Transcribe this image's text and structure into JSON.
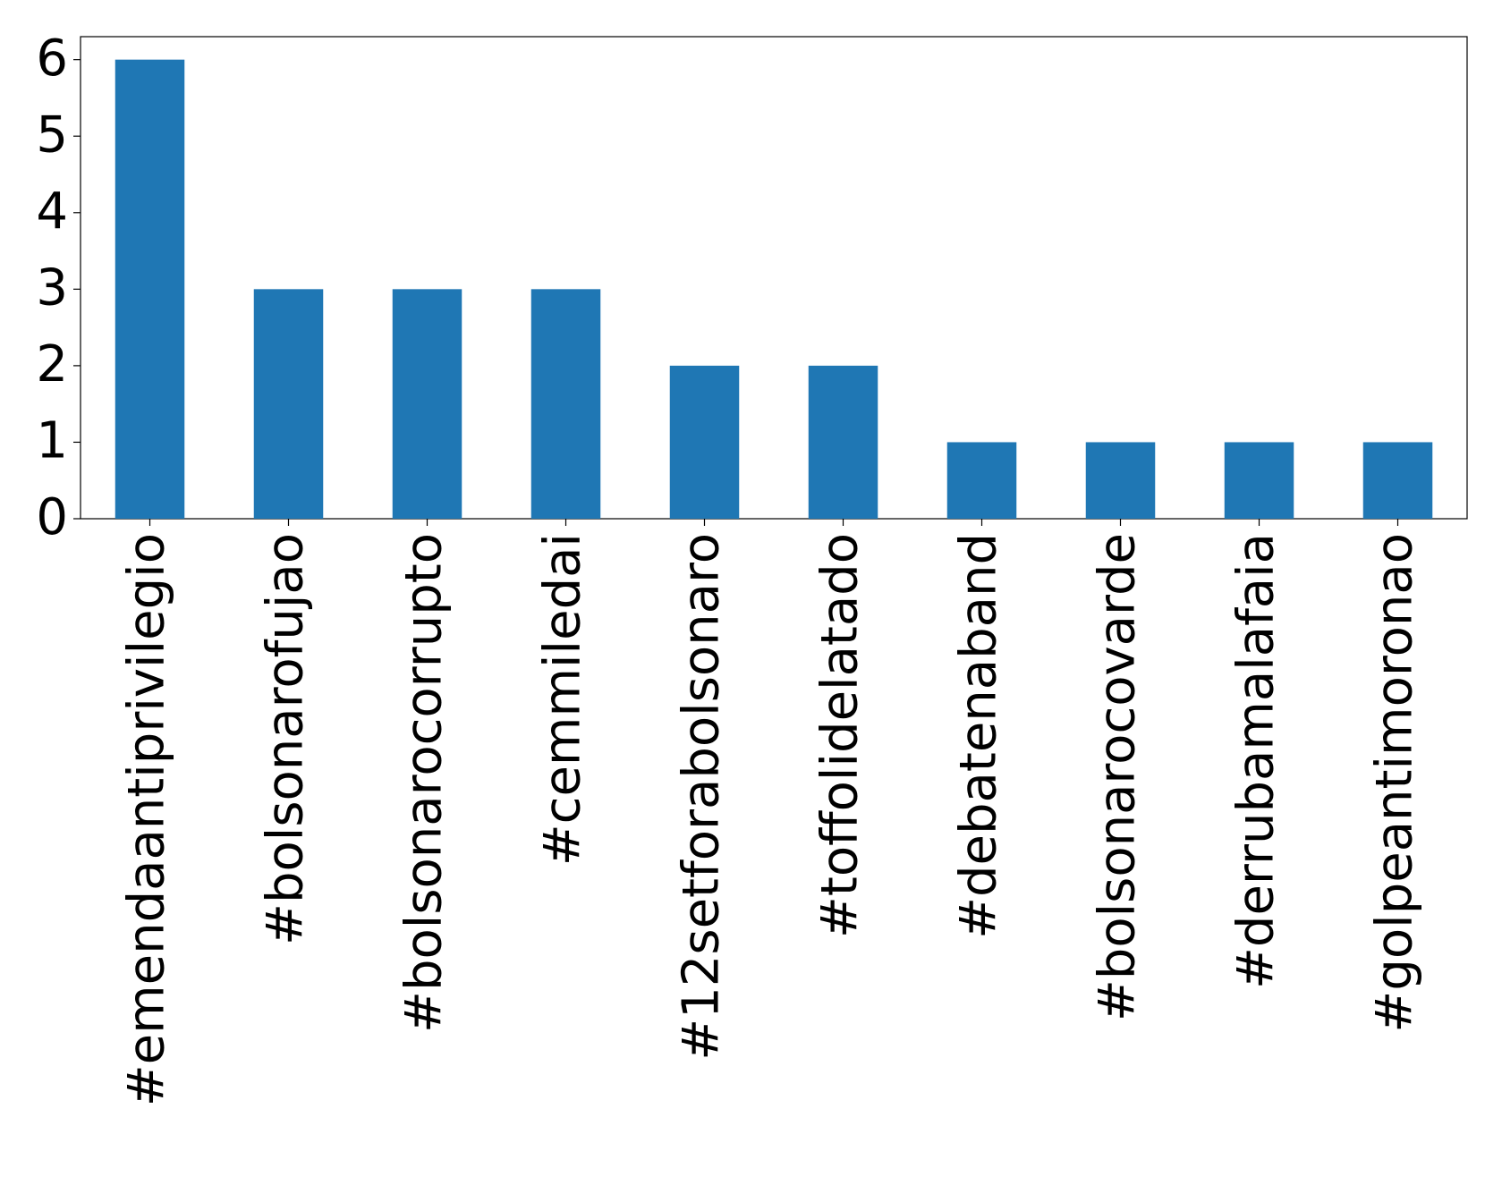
{
  "chart_data": {
    "type": "bar",
    "categories": [
      "#emendaantiprivilegio",
      "#bolsonarofujao",
      "#bolsonarocorrupto",
      "#cemmiledai",
      "#12setforabolsonaro",
      "#toffolidelatado",
      "#debatenaband",
      "#bolsonarocovarde",
      "#derrubamalafaia",
      "#golpeantimoronao"
    ],
    "values": [
      6,
      3,
      3,
      3,
      2,
      2,
      1,
      1,
      1,
      1
    ],
    "color": "#1f77b4",
    "ylim": [
      0,
      6.3
    ],
    "yticks": [
      0,
      1,
      2,
      3,
      4,
      5,
      6
    ],
    "grid": false
  }
}
